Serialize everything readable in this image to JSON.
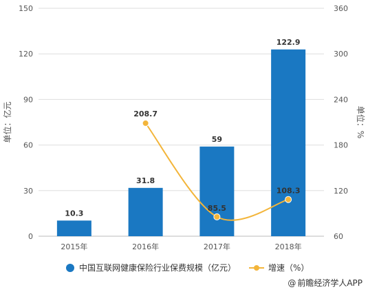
{
  "chart_data": {
    "type": "bar+line",
    "categories": [
      "2015年",
      "2016年",
      "2017年",
      "2018年"
    ],
    "series": [
      {
        "name": "中国互联网健康保险行业保费规模（亿元）",
        "type": "bar",
        "axis": "left",
        "values": [
          10.3,
          31.8,
          59,
          122.9
        ],
        "labels": [
          "10.3",
          "31.8",
          "59",
          "122.9"
        ]
      },
      {
        "name": "增速（%）",
        "type": "line",
        "axis": "right",
        "values": [
          null,
          208.7,
          85.5,
          108.3
        ],
        "labels": [
          "",
          "208.7",
          "85.5",
          "108.3"
        ]
      }
    ],
    "ylabel": "单位：亿元",
    "y2label": "单位：%",
    "ylim": [
      0,
      150
    ],
    "y2lim": [
      60,
      360
    ],
    "yticks": [
      "0",
      "30",
      "60",
      "90",
      "120",
      "150"
    ],
    "y2ticks": [
      "60",
      "120",
      "180",
      "240",
      "300",
      "360"
    ],
    "grid": true,
    "legend": "bottom"
  },
  "colors": {
    "bar": "#1a78c2",
    "line": "#f3b53a",
    "grid": "#dddddd",
    "axis": "#bbbbbb"
  },
  "source": {
    "icon": "at-icon",
    "mark": "@",
    "text": "前瞻经济学人APP"
  }
}
